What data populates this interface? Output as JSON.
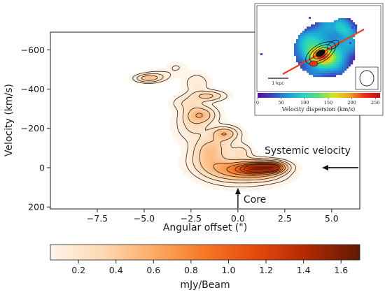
{
  "chart_data": [
    {
      "type": "position-velocity-diagram",
      "xlabel": "Angular offset (\")",
      "ylabel": "Velocity (km/s)",
      "xlim": [
        -10,
        6.5
      ],
      "ylim": [
        210,
        -690
      ],
      "y_inverted": true,
      "x_ticks": [
        "−7.5",
        "−5.0",
        "−2.5",
        "0.0",
        "2.5",
        "5.0"
      ],
      "x_tick_values": [
        -7.5,
        -5.0,
        -2.5,
        0.0,
        2.5,
        5.0
      ],
      "y_ticks": [
        "−600",
        "−400",
        "−200",
        "0",
        "200"
      ],
      "y_tick_values": [
        -600,
        -400,
        -200,
        0,
        200
      ],
      "emission_components": [
        {
          "x": 1.4,
          "y": 0,
          "peak_mJy_per_beam": 1.7
        },
        {
          "x": 0.6,
          "y": 10,
          "peak_mJy_per_beam": 0.9
        },
        {
          "x": -0.6,
          "y": 10,
          "peak_mJy_per_beam": 0.55
        },
        {
          "x": -0.7,
          "y": -175,
          "peak_mJy_per_beam": 0.45
        },
        {
          "x": -1.5,
          "y": -90,
          "peak_mJy_per_beam": 0.35
        },
        {
          "x": -2.0,
          "y": -270,
          "peak_mJy_per_beam": 0.5
        },
        {
          "x": -1.6,
          "y": -365,
          "peak_mJy_per_beam": 0.4
        },
        {
          "x": -4.8,
          "y": -455,
          "peak_mJy_per_beam": 0.45
        },
        {
          "x": -2.7,
          "y": -330,
          "peak_mJy_per_beam": 0.2
        },
        {
          "x": 0.2,
          "y": -80,
          "peak_mJy_per_beam": 0.3
        }
      ],
      "annotations": [
        {
          "text": "Systemic velocity",
          "points_to": {
            "x": 6.5,
            "y": 0
          }
        },
        {
          "text": "Core",
          "points_to": {
            "x": 0.0,
            "y": 100
          }
        }
      ],
      "colorbar": {
        "label": "mJy/Beam",
        "range": [
          0.05,
          1.7
        ],
        "ticks": [
          "0.2",
          "0.4",
          "0.6",
          "0.8",
          "1.0",
          "1.2",
          "1.4",
          "1.6"
        ],
        "tick_values": [
          0.2,
          0.4,
          0.6,
          0.8,
          1.0,
          1.2,
          1.4,
          1.6
        ],
        "colormap": [
          "#fff5eb",
          "#fdd9b4",
          "#fdab67",
          "#f67824",
          "#e5480d",
          "#b02703",
          "#5e1a04"
        ]
      }
    },
    {
      "type": "heatmap",
      "role": "inset-map",
      "xlabel": "Velocity dispersion (km/s)",
      "colorbar_range": [
        0,
        260
      ],
      "colorbar_ticks": [
        "0",
        "50",
        "100",
        "150",
        "200",
        "250"
      ],
      "colorbar_tick_values": [
        0,
        50,
        100,
        150,
        200,
        250
      ],
      "colormap": [
        "#5a0aa0",
        "#3b4cc0",
        "#1f9bd8",
        "#22d3c8",
        "#5ee06a",
        "#d8e41c",
        "#f5a21a",
        "#ee2a1a",
        "#c20e12"
      ],
      "scale_bar": "1 kpc"
    }
  ]
}
